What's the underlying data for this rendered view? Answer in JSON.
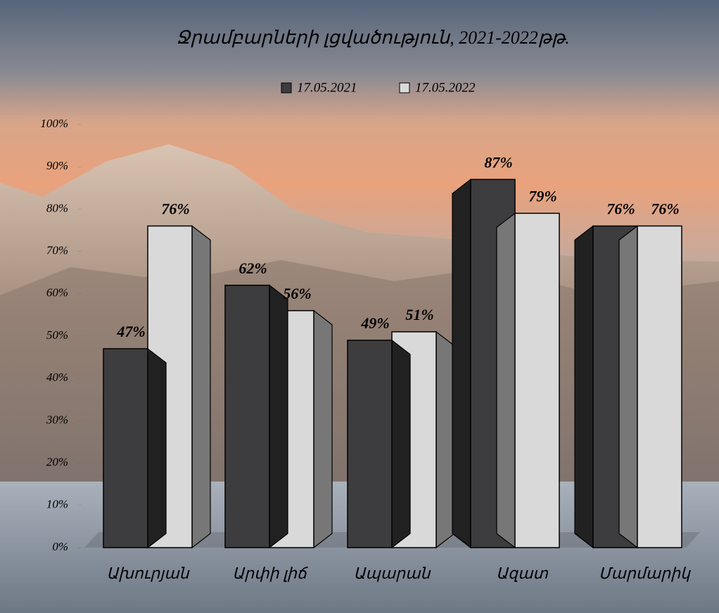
{
  "chart_data": {
    "type": "bar3d",
    "title": "Ջրամբարների լցվածություն,  2021-2022թթ.",
    "categories": [
      "Ախուրյան",
      "Արփի լիճ",
      "Ապարան",
      "Ազատ",
      "Մարմարիկ"
    ],
    "series": [
      {
        "name": "17.05.2021",
        "color": "#3d3c3e",
        "values": [
          47,
          62,
          49,
          87,
          76
        ],
        "value_labels": [
          "47%",
          "62%",
          "49%",
          "87%",
          "76%"
        ]
      },
      {
        "name": "17.05.2022",
        "color": "#d9d9d9",
        "values": [
          76,
          56,
          51,
          79,
          76
        ],
        "value_labels": [
          "76%",
          "56%",
          "51%",
          "79%",
          "76%"
        ]
      }
    ],
    "ylim": [
      0,
      100
    ],
    "yticks": [
      {
        "value": 0,
        "label": "0%"
      },
      {
        "value": 10,
        "label": "10%"
      },
      {
        "value": 20,
        "label": "20%"
      },
      {
        "value": 30,
        "label": "30%"
      },
      {
        "value": 40,
        "label": "40%"
      },
      {
        "value": 50,
        "label": "50%"
      },
      {
        "value": 60,
        "label": "60%"
      },
      {
        "value": 70,
        "label": "70%"
      },
      {
        "value": 80,
        "label": "80%"
      },
      {
        "value": 90,
        "label": "90%"
      },
      {
        "value": 100,
        "label": "100%"
      }
    ]
  }
}
